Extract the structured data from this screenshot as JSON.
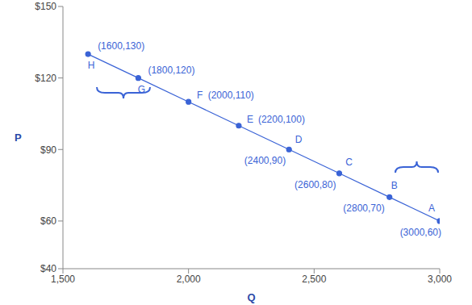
{
  "chart_data": {
    "type": "line",
    "x_label": "Q",
    "y_label": "P",
    "x": [
      1600,
      1800,
      2000,
      2200,
      2400,
      2600,
      2800,
      3000
    ],
    "values": [
      130,
      120,
      110,
      100,
      90,
      80,
      70,
      60
    ],
    "point_labels": [
      "H",
      "G",
      "F",
      "E",
      "D",
      "C",
      "B",
      "A"
    ],
    "annotations": [
      "(1600,130)",
      "(1800,120)",
      "(2000,110)",
      "(2200,100)",
      "(2400,90)",
      "(2600,80)",
      "(2800,70)",
      "(3000,60)"
    ],
    "color": "#3a63d6",
    "marker": "circle",
    "xlim": [
      1500,
      3000
    ],
    "xticks": [
      {
        "value": 1500,
        "label": "1,500"
      },
      {
        "value": 2000,
        "label": "2,000"
      },
      {
        "value": 2500,
        "label": "2,500"
      },
      {
        "value": 3000,
        "label": "3,000"
      }
    ],
    "ylim": [
      40,
      150
    ],
    "yticks": [
      {
        "value": 40,
        "label": "$40"
      },
      {
        "value": 60,
        "label": "$60"
      },
      {
        "value": 90,
        "label": "$90"
      },
      {
        "value": 120,
        "label": "$120"
      },
      {
        "value": 150,
        "label": "$150"
      }
    ],
    "grid": false
  }
}
